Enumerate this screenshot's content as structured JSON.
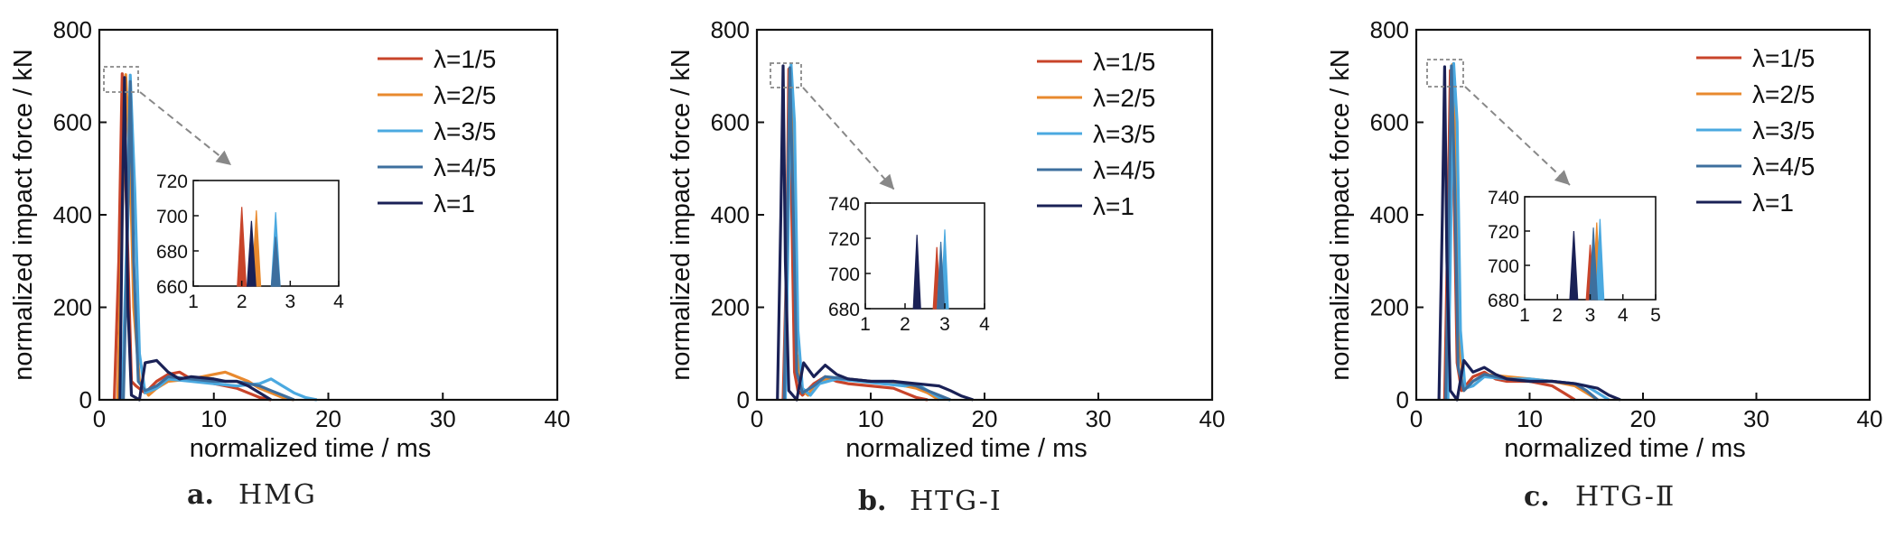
{
  "chart_data": [
    {
      "type": "line",
      "caption_letter": "a.",
      "caption": "HMG",
      "xlabel": "normalized time / ms",
      "ylabel": "normalized impact force / kN",
      "xlim": [
        0,
        40
      ],
      "ylim": [
        0,
        800
      ],
      "xticks": [
        0,
        10,
        20,
        30,
        40
      ],
      "yticks": [
        0,
        200,
        400,
        600,
        800
      ],
      "legend_position": "top-right",
      "series": [
        {
          "name": "λ=1/5",
          "color": "#c8442a",
          "peak": 705,
          "x": [
            1.3,
            1.7,
            2.0,
            2.4,
            2.8,
            3.2,
            4,
            5,
            6,
            7,
            8,
            9,
            10,
            11,
            12,
            13,
            14,
            15
          ],
          "y": [
            0,
            300,
            705,
            400,
            40,
            30,
            15,
            40,
            55,
            60,
            45,
            40,
            35,
            30,
            25,
            15,
            5,
            0
          ]
        },
        {
          "name": "λ=2/5",
          "color": "#e8892e",
          "peak": 703,
          "x": [
            1.6,
            2.0,
            2.3,
            2.7,
            3.0,
            3.5,
            4.3,
            5,
            6,
            8,
            10,
            11,
            12,
            13,
            14,
            15,
            16,
            17
          ],
          "y": [
            0,
            400,
            703,
            500,
            200,
            40,
            10,
            25,
            40,
            45,
            55,
            60,
            50,
            40,
            25,
            15,
            5,
            0
          ]
        },
        {
          "name": "λ=3/5",
          "color": "#4ba9e0",
          "peak": 702,
          "x": [
            2.0,
            2.4,
            2.7,
            3.1,
            3.5,
            4.0,
            5,
            6,
            8,
            10,
            12,
            14,
            15,
            16,
            17,
            18,
            19
          ],
          "y": [
            0,
            350,
            702,
            450,
            100,
            15,
            25,
            45,
            40,
            35,
            30,
            35,
            45,
            30,
            15,
            5,
            0
          ]
        },
        {
          "name": "λ=4/5",
          "color": "#3d6f9e",
          "peak": 688,
          "x": [
            2.1,
            2.5,
            2.7,
            3.0,
            3.4,
            4.0,
            5,
            6,
            8,
            10,
            12,
            13,
            14,
            15,
            16,
            17
          ],
          "y": [
            0,
            400,
            688,
            300,
            40,
            20,
            30,
            50,
            45,
            40,
            40,
            35,
            30,
            20,
            10,
            0
          ]
        },
        {
          "name": "λ=1",
          "color": "#1a2156",
          "peak": 697,
          "x": [
            1.8,
            2.0,
            2.2,
            2.5,
            2.8,
            3.5,
            4.0,
            5.0,
            6.0,
            7,
            8,
            10,
            11,
            12,
            13,
            14,
            15
          ],
          "y": [
            0,
            400,
            697,
            200,
            10,
            0,
            80,
            85,
            60,
            45,
            50,
            45,
            40,
            40,
            30,
            15,
            0
          ]
        }
      ],
      "inset": {
        "xlim": [
          1,
          4
        ],
        "ylim": [
          660,
          720
        ],
        "xticks": [
          1,
          2,
          3,
          4
        ],
        "yticks": [
          660,
          680,
          700,
          720
        ]
      }
    },
    {
      "type": "line",
      "caption_letter": "b.",
      "caption": "HTG-Ⅰ",
      "xlabel": "normalized time / ms",
      "ylabel": "normalized impact force / kN",
      "xlim": [
        0,
        40
      ],
      "ylim": [
        0,
        800
      ],
      "xticks": [
        0,
        10,
        20,
        30,
        40
      ],
      "yticks": [
        0,
        200,
        400,
        600,
        800
      ],
      "legend_position": "top-right",
      "series": [
        {
          "name": "λ=1/5",
          "color": "#c8442a",
          "peak": 715,
          "x": [
            2.3,
            2.6,
            2.8,
            3.0,
            3.3,
            3.6,
            4.0,
            5,
            6,
            7,
            8,
            10,
            12,
            13,
            14,
            15
          ],
          "y": [
            0,
            300,
            715,
            500,
            60,
            20,
            10,
            35,
            50,
            40,
            35,
            30,
            25,
            15,
            5,
            0
          ]
        },
        {
          "name": "λ=2/5",
          "color": "#e8892e",
          "peak": 716,
          "x": [
            2.4,
            2.7,
            2.9,
            3.2,
            3.5,
            4.0,
            4.5,
            5,
            6,
            8,
            10,
            12,
            14,
            15,
            16
          ],
          "y": [
            0,
            400,
            716,
            550,
            100,
            20,
            10,
            30,
            45,
            45,
            40,
            35,
            25,
            15,
            0
          ]
        },
        {
          "name": "λ=3/5",
          "color": "#4ba9e0",
          "peak": 725,
          "x": [
            2.5,
            2.8,
            3.0,
            3.3,
            3.6,
            4.0,
            4.7,
            5.5,
            7,
            9,
            11,
            13,
            14,
            15,
            16,
            17
          ],
          "y": [
            0,
            450,
            725,
            600,
            150,
            25,
            10,
            35,
            45,
            40,
            35,
            30,
            35,
            20,
            5,
            0
          ]
        },
        {
          "name": "λ=4/5",
          "color": "#3d6f9e",
          "peak": 718,
          "x": [
            2.4,
            2.7,
            2.9,
            3.2,
            3.5,
            4.0,
            5,
            6,
            8,
            10,
            12,
            14,
            15,
            16,
            17
          ],
          "y": [
            0,
            420,
            718,
            400,
            60,
            15,
            30,
            50,
            45,
            40,
            40,
            30,
            20,
            10,
            0
          ]
        },
        {
          "name": "λ=1",
          "color": "#1a2156",
          "peak": 722,
          "x": [
            1.8,
            2.1,
            2.3,
            2.5,
            2.8,
            3.5,
            4.1,
            5,
            6,
            7,
            8,
            10,
            12,
            14,
            16,
            17,
            18,
            19
          ],
          "y": [
            0,
            400,
            722,
            300,
            20,
            0,
            80,
            50,
            75,
            55,
            45,
            40,
            40,
            35,
            30,
            20,
            8,
            0
          ]
        }
      ],
      "inset": {
        "xlim": [
          1,
          4
        ],
        "ylim": [
          680,
          740
        ],
        "xticks": [
          1,
          2,
          3,
          4
        ],
        "yticks": [
          680,
          700,
          720,
          740
        ]
      }
    },
    {
      "type": "line",
      "caption_letter": "c.",
      "caption": "HTG-Ⅱ",
      "xlabel": "normalized time / ms",
      "ylabel": "normalized impact force / kN",
      "xlim": [
        0,
        40
      ],
      "ylim": [
        0,
        800
      ],
      "xticks": [
        0,
        10,
        20,
        30,
        40
      ],
      "yticks": [
        0,
        200,
        400,
        600,
        800
      ],
      "legend_position": "top-right",
      "series": [
        {
          "name": "λ=1/5",
          "color": "#c8442a",
          "peak": 712,
          "x": [
            2.5,
            2.8,
            3.0,
            3.3,
            3.6,
            4.0,
            5,
            6,
            7,
            8,
            10,
            12,
            13,
            14
          ],
          "y": [
            0,
            400,
            712,
            500,
            80,
            20,
            50,
            60,
            45,
            40,
            40,
            30,
            15,
            0
          ]
        },
        {
          "name": "λ=2/5",
          "color": "#e8892e",
          "peak": 725,
          "x": [
            2.7,
            3.0,
            3.2,
            3.5,
            3.8,
            4.2,
            5,
            6,
            8,
            10,
            12,
            14,
            15,
            16
          ],
          "y": [
            0,
            450,
            725,
            550,
            120,
            20,
            40,
            55,
            50,
            45,
            40,
            30,
            15,
            0
          ]
        },
        {
          "name": "λ=3/5",
          "color": "#4ba9e0",
          "peak": 727,
          "x": [
            2.8,
            3.1,
            3.3,
            3.6,
            3.9,
            4.3,
            5,
            6,
            8,
            10,
            12,
            14,
            15,
            16,
            17
          ],
          "y": [
            0,
            450,
            727,
            600,
            150,
            25,
            30,
            50,
            45,
            45,
            40,
            35,
            30,
            15,
            0
          ]
        },
        {
          "name": "λ=4/5",
          "color": "#3d6f9e",
          "peak": 722,
          "x": [
            2.6,
            2.9,
            3.1,
            3.4,
            3.7,
            4.2,
            5,
            6,
            8,
            10,
            12,
            14,
            15,
            16
          ],
          "y": [
            0,
            420,
            722,
            450,
            70,
            20,
            40,
            55,
            45,
            40,
            40,
            35,
            20,
            0
          ]
        },
        {
          "name": "λ=1",
          "color": "#1a2156",
          "peak": 720,
          "x": [
            2.0,
            2.3,
            2.5,
            2.7,
            3.0,
            3.6,
            4.2,
            5,
            6,
            7,
            8,
            10,
            12,
            14,
            16,
            17,
            18
          ],
          "y": [
            0,
            400,
            720,
            300,
            20,
            0,
            85,
            60,
            70,
            55,
            45,
            40,
            40,
            35,
            25,
            10,
            0
          ]
        }
      ],
      "inset": {
        "xlim": [
          1,
          5
        ],
        "ylim": [
          680,
          740
        ],
        "xticks": [
          1,
          2,
          3,
          4,
          5
        ],
        "yticks": [
          680,
          700,
          720,
          740
        ]
      }
    }
  ]
}
